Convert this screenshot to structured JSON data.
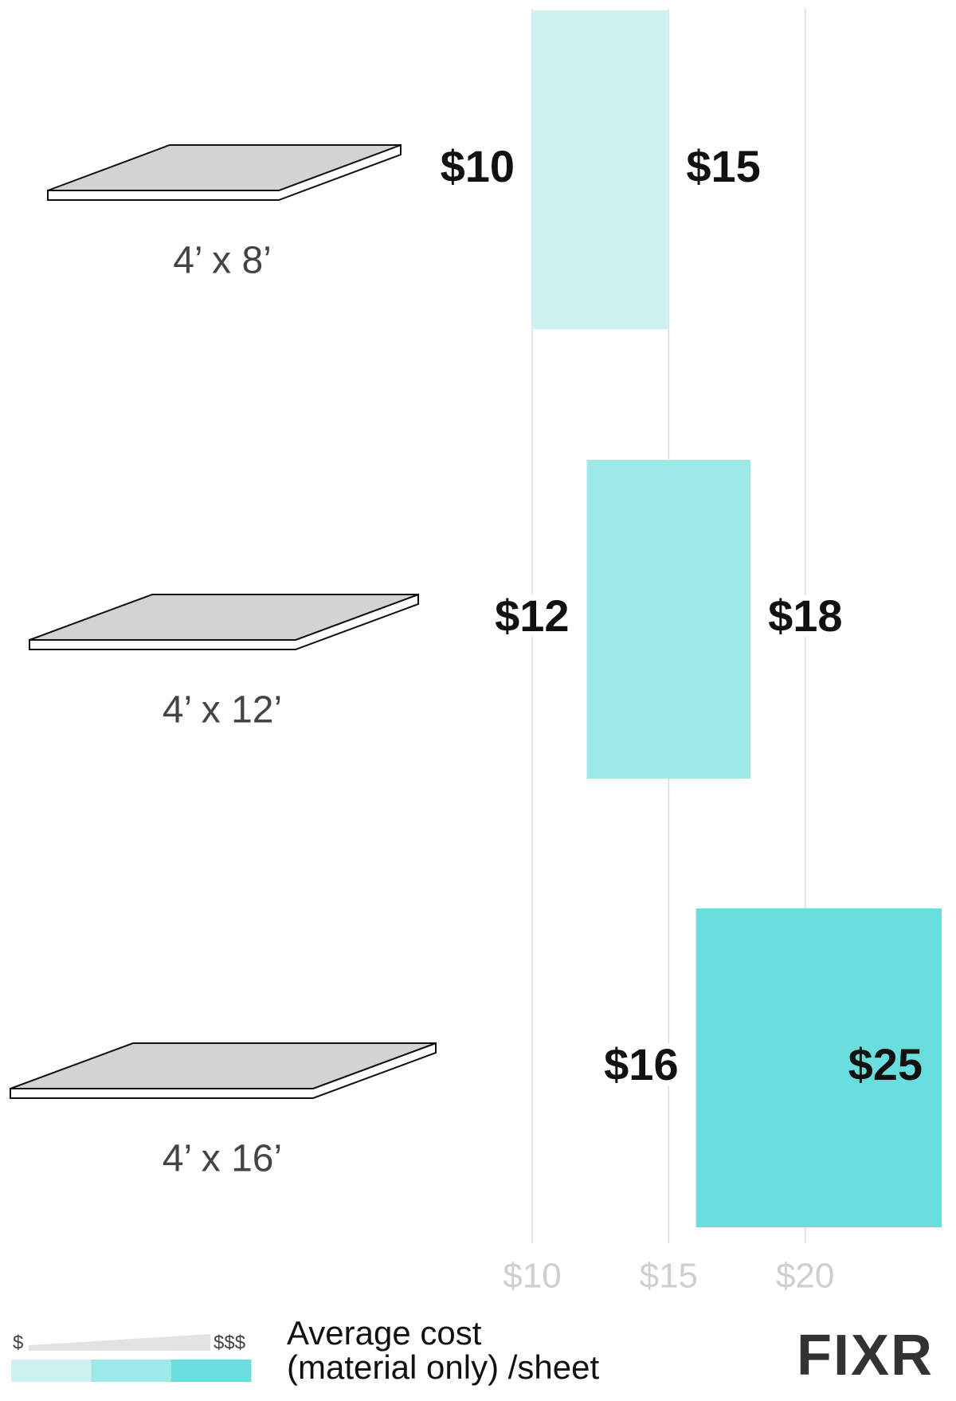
{
  "chart_data": {
    "type": "range_bar",
    "categories": [
      "4’ x 8’",
      "4’ x 12’",
      "4’ x 16’"
    ],
    "low": [
      10,
      12,
      16
    ],
    "low_labels": [
      "$10",
      "$12",
      "$16"
    ],
    "high": [
      15,
      18,
      25
    ],
    "high_labels": [
      "$15",
      "$18",
      "$25"
    ],
    "colors": [
      "#cdf2f0",
      "#9ce9e7",
      "#6adedc"
    ],
    "xlim": [
      10,
      25
    ],
    "xticks": [
      {
        "value": 10,
        "label": "$10"
      },
      {
        "value": 15,
        "label": "$15"
      },
      {
        "value": 20,
        "label": "$20"
      }
    ],
    "grid": true,
    "legend": {
      "low_label": "$",
      "high_label": "$$$",
      "title": [
        "Average cost",
        "(material only) /sheet"
      ]
    },
    "brand": "FIXR"
  }
}
